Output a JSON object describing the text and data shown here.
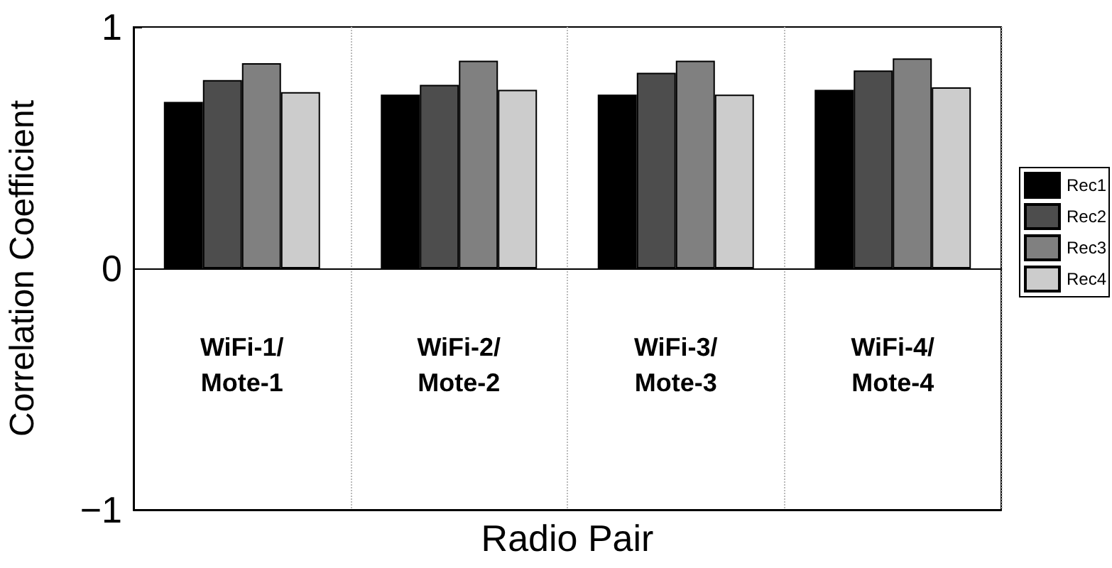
{
  "chart_data": {
    "type": "bar",
    "xlabel": "Radio Pair",
    "ylabel": "Correlation Coefficient",
    "categories": [
      "WiFi-1/\nMote-1",
      "WiFi-2/\nMote-2",
      "WiFi-3/\nMote-3",
      "WiFi-4/\nMote-4"
    ],
    "series": [
      {
        "name": "Rec1",
        "color": "#000000",
        "values": [
          0.69,
          0.72,
          0.72,
          0.74
        ]
      },
      {
        "name": "Rec2",
        "color": "#4d4d4d",
        "values": [
          0.78,
          0.76,
          0.81,
          0.82
        ]
      },
      {
        "name": "Rec3",
        "color": "#808080",
        "values": [
          0.85,
          0.86,
          0.86,
          0.87
        ]
      },
      {
        "name": "Rec4",
        "color": "#cccccc",
        "values": [
          0.73,
          0.74,
          0.72,
          0.75
        ]
      }
    ],
    "ylim": [
      -1,
      1
    ],
    "yticks": [
      -1,
      0,
      1
    ],
    "grid": "x",
    "legend": "right"
  }
}
